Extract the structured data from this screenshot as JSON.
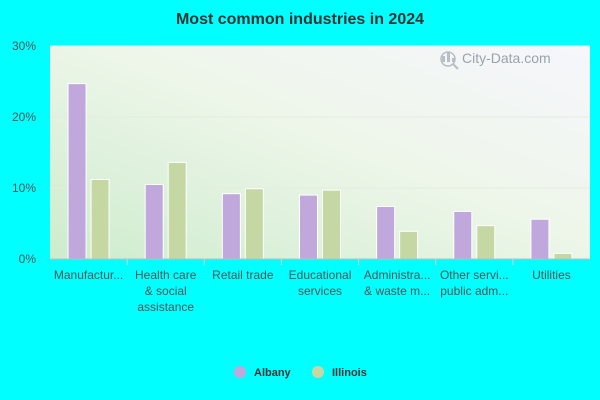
{
  "chart_data": {
    "type": "bar",
    "title": "Most common industries in 2024",
    "categories": [
      [
        "Manufactur..."
      ],
      [
        "Health care",
        "& social",
        "assistance"
      ],
      [
        "Retail trade"
      ],
      [
        "Educational",
        "services"
      ],
      [
        "Administra...",
        "& waste m..."
      ],
      [
        "Other servi...",
        "public adm..."
      ],
      [
        "Utilities"
      ]
    ],
    "series": [
      {
        "name": "Albany",
        "color": "#c0a8dc",
        "values": [
          24.7,
          10.5,
          9.2,
          9.0,
          7.4,
          6.7,
          5.6
        ]
      },
      {
        "name": "Illinois",
        "color": "#c5d8a4",
        "values": [
          11.2,
          13.6,
          9.9,
          9.7,
          3.9,
          4.7,
          0.8
        ]
      }
    ],
    "ylim": [
      0,
      30
    ],
    "yticks": [
      0,
      10,
      20,
      30
    ],
    "ytick_labels": [
      "0%",
      "10%",
      "20%",
      "30%"
    ],
    "grid": true,
    "legend_position": "bottom"
  },
  "watermark": {
    "text": "City-Data.com",
    "icon": "magnifier-icon"
  }
}
